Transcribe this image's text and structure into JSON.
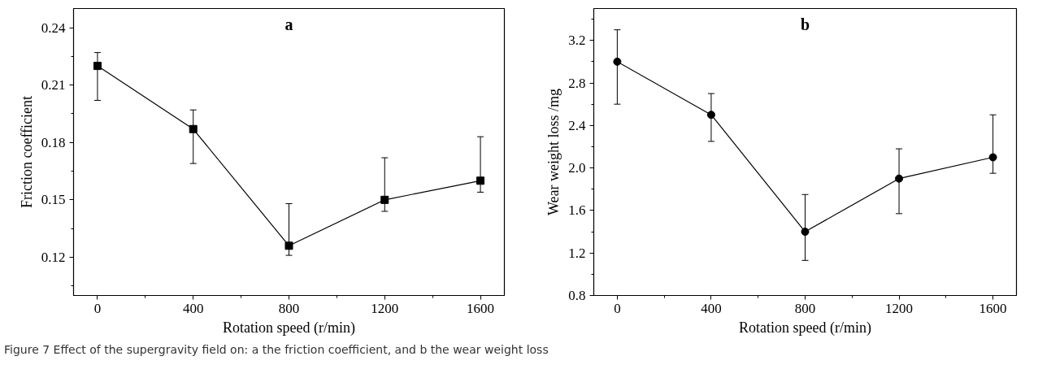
{
  "chart_data": [
    {
      "type": "line",
      "title": "a",
      "xlabel": "Rotation speed (r/min)",
      "ylabel": "Friction coefficient",
      "x": [
        0,
        400,
        800,
        1200,
        1600
      ],
      "series": [
        {
          "color": "#000000",
          "values": [
            0.22,
            0.187,
            0.126,
            0.15,
            0.16
          ],
          "errors": [
            [
              0.202,
              0.227
            ],
            [
              0.169,
              0.197
            ],
            [
              0.121,
              0.148
            ],
            [
              0.144,
              0.172
            ],
            [
              0.154,
              0.183
            ]
          ]
        }
      ],
      "marker": "square",
      "xlim": [
        -100,
        1700
      ],
      "ylim": [
        0.1,
        0.25
      ],
      "xticks": [
        0,
        400,
        800,
        1200,
        1600
      ],
      "yticks": [
        0.12,
        0.15,
        0.18,
        0.21,
        0.24
      ],
      "grid": false,
      "annotations": [
        "Figure 7  Effect of the supergravity field on: a the friction coefficient, and b the wear weight loss"
      ]
    },
    {
      "type": "line",
      "title": "b",
      "xlabel": "Rotation speed (r/min)",
      "ylabel": "Wear weight loss /mg",
      "x": [
        0,
        400,
        800,
        1200,
        1600
      ],
      "series": [
        {
          "color": "#000000",
          "values": [
            3.0,
            2.5,
            1.4,
            1.9,
            2.1
          ],
          "errors": [
            [
              2.6,
              3.3
            ],
            [
              2.25,
              2.7
            ],
            [
              1.13,
              1.75
            ],
            [
              1.57,
              2.18
            ],
            [
              1.95,
              2.5
            ]
          ]
        }
      ],
      "marker": "circle",
      "xlim": [
        -100,
        1700
      ],
      "ylim": [
        0.8,
        3.5
      ],
      "xticks": [
        0,
        400,
        800,
        1200,
        1600
      ],
      "yticks": [
        {
          "value": 0.8,
          "label": "0.8"
        },
        {
          "value": 1.2,
          "label": "1.2"
        },
        {
          "value": 1.6,
          "label": "1.6"
        },
        {
          "value": 2.0,
          "label": "2.0"
        },
        {
          "value": 2.4,
          "label": "2.4"
        },
        {
          "value": 2.8,
          "label": "2.8"
        },
        {
          "value": 3.2,
          "label": "3.2"
        }
      ],
      "grid": false
    }
  ]
}
